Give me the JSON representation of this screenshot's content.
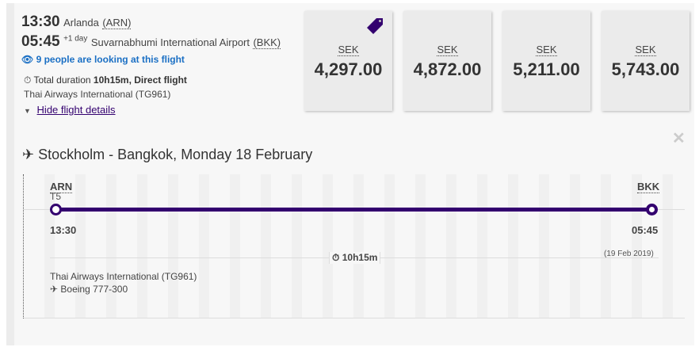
{
  "summary": {
    "dep_time": "13:30",
    "dep_airport": "Arlanda",
    "dep_code": "(ARN)",
    "arr_time": "05:45",
    "arr_day_offset": "+1 day",
    "arr_airport": "Suvarnabhumi International Airport",
    "arr_code": "(BKK)",
    "watchers": "9 people are looking at this flight",
    "duration_label": "Total duration",
    "duration_value": "10h15m, Direct flight",
    "airline": "Thai Airways International (TG961)",
    "toggle": "Hide flight details"
  },
  "prices": [
    {
      "currency": "SEK",
      "amount": "4,297.00",
      "tag": true
    },
    {
      "currency": "SEK",
      "amount": "4,872.00"
    },
    {
      "currency": "SEK",
      "amount": "5,211.00"
    },
    {
      "currency": "SEK",
      "amount": "5,743.00"
    }
  ],
  "details": {
    "title": "Stockholm - Bangkok, Monday 18 February",
    "from_code": "ARN",
    "from_terminal": "T5",
    "to_code": "BKK",
    "dep_time": "13:30",
    "arr_time": "05:45",
    "arr_date": "(19 Feb 2019)",
    "duration": "10h15m",
    "airline": "Thai Airways International (TG961)",
    "aircraft": "Boeing 777-300"
  },
  "colors": {
    "brand": "#33006f",
    "link": "#1a6fc4"
  }
}
